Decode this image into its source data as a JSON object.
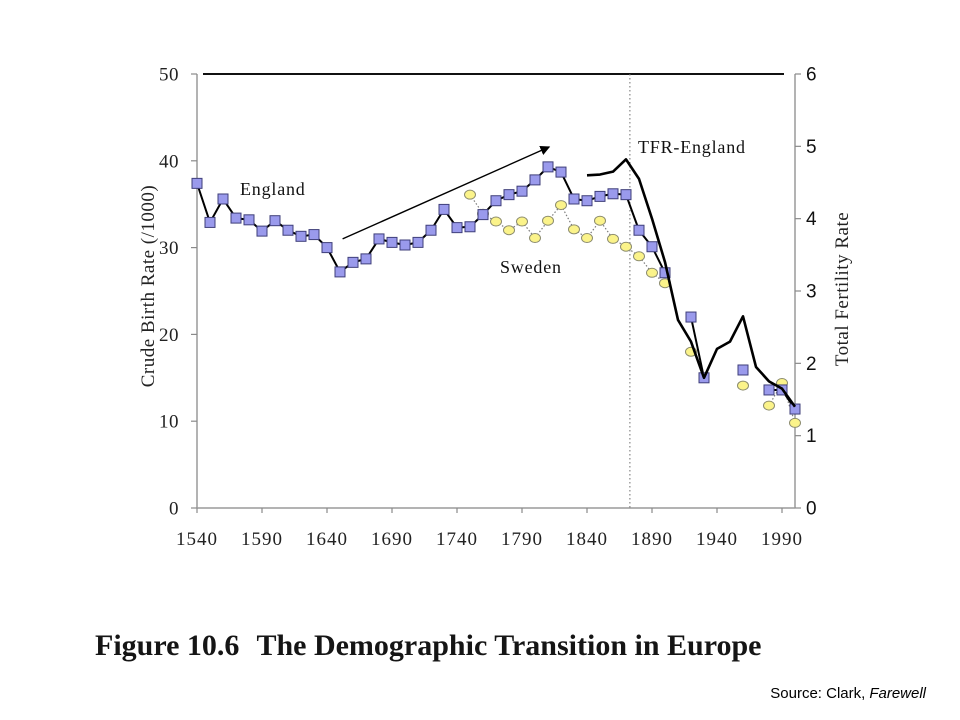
{
  "chart_data": {
    "type": "line",
    "figure_number": "Figure 10.6",
    "title": "The Demographic Transition in Europe",
    "ylabel": "Crude Birth Rate (/1000)",
    "y2label": "Total Fertility Rate",
    "xlim": [
      1540,
      2000
    ],
    "ylim": [
      0,
      50
    ],
    "y2lim": [
      0,
      6
    ],
    "x_ticks": [
      1540,
      1590,
      1640,
      1690,
      1740,
      1790,
      1840,
      1890,
      1940,
      1990
    ],
    "y_ticks": [
      0,
      10,
      20,
      30,
      40,
      50
    ],
    "y2_ticks": [
      0,
      1,
      2,
      3,
      4,
      5,
      6
    ],
    "grid": false,
    "series": [
      {
        "name": "England",
        "axis": "left",
        "marker": "square",
        "line": "solid",
        "marker_color": "#9a9aec",
        "marker_edge_color": "#3f3f7a",
        "line_color": "#000000",
        "x": [
          1540,
          1550,
          1560,
          1570,
          1580,
          1590,
          1600,
          1610,
          1620,
          1630,
          1640,
          1650,
          1660,
          1670,
          1680,
          1690,
          1700,
          1710,
          1720,
          1730,
          1740,
          1750,
          1760,
          1770,
          1780,
          1790,
          1800,
          1810,
          1820,
          1830,
          1840,
          1850,
          1860,
          1870,
          1880,
          1890,
          1900,
          1920,
          1930,
          1960,
          1980,
          1990,
          2000
        ],
        "y": [
          37.4,
          32.9,
          35.6,
          33.4,
          33.2,
          31.9,
          33.1,
          32.0,
          31.3,
          31.5,
          30.0,
          27.2,
          28.3,
          28.7,
          31.0,
          30.6,
          30.3,
          30.6,
          32.0,
          34.4,
          32.3,
          32.4,
          33.8,
          35.4,
          36.1,
          36.5,
          37.8,
          39.3,
          38.7,
          35.6,
          35.4,
          35.9,
          36.2,
          36.1,
          32.0,
          30.1,
          27.1,
          22.0,
          15.0,
          15.9,
          13.6,
          13.6,
          11.4
        ]
      },
      {
        "name": "Sweden",
        "axis": "left",
        "marker": "circle",
        "line": "dotted",
        "marker_color": "#fbf38a",
        "marker_edge_color": "#8c8c6e",
        "line_color": "#7a7a7a",
        "x": [
          1750,
          1760,
          1770,
          1780,
          1790,
          1800,
          1810,
          1820,
          1830,
          1840,
          1850,
          1860,
          1870,
          1880,
          1890,
          1900,
          1920,
          1960,
          1980,
          1990,
          2000
        ],
        "y": [
          36.1,
          33.9,
          33.0,
          32.0,
          33.0,
          31.1,
          33.1,
          34.9,
          32.1,
          31.1,
          33.1,
          31.0,
          30.1,
          29.0,
          27.1,
          25.9,
          18.0,
          14.1,
          11.8,
          14.4,
          9.8
        ]
      },
      {
        "name": "TFR-England",
        "axis": "right",
        "marker": "none",
        "line": "solid",
        "line_color": "#000000",
        "x": [
          1840,
          1850,
          1860,
          1870,
          1880,
          1890,
          1900,
          1910,
          1920,
          1930,
          1940,
          1950,
          1960,
          1970,
          1980,
          1990,
          2000
        ],
        "y": [
          4.6,
          4.61,
          4.65,
          4.82,
          4.55,
          4.0,
          3.4,
          2.6,
          2.3,
          1.8,
          2.2,
          2.3,
          2.65,
          1.95,
          1.75,
          1.65,
          1.4
        ]
      }
    ],
    "annotations": {
      "trend_arrow": {
        "from": [
          1652,
          31.0
        ],
        "to": [
          1811,
          41.6
        ]
      },
      "dotted_vertical_line_x": 1873
    }
  },
  "source": {
    "prefix": "Source: Clark,",
    "work": "Farewell"
  }
}
